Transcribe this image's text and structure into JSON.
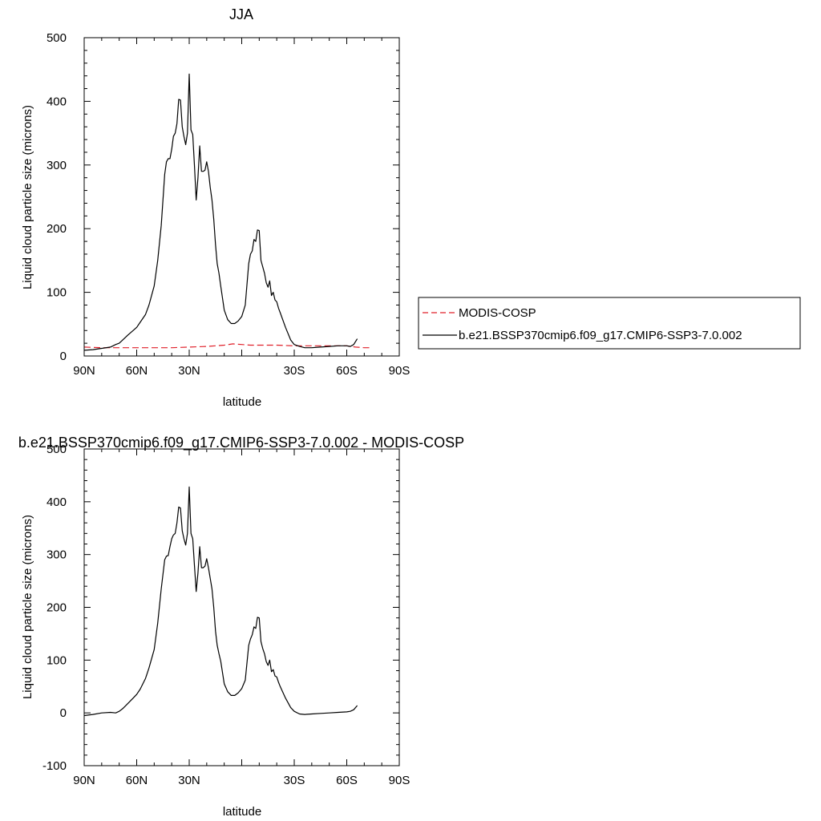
{
  "chart_data": [
    {
      "type": "line",
      "title": "JJA",
      "xlabel": "latitude",
      "ylabel": "Liquid cloud particle size (microns)",
      "xlim": [
        90,
        -90
      ],
      "ylim": [
        0,
        500
      ],
      "xticks": [
        90,
        60,
        30,
        0,
        -30,
        -60,
        -90
      ],
      "xtick_labels": [
        "90N",
        "60N",
        "30N",
        "",
        "30S",
        "60S",
        "90S"
      ],
      "yticks": [
        0,
        100,
        200,
        300,
        400,
        500
      ],
      "ytick_labels": [
        "0",
        "100",
        "200",
        "300",
        "400",
        "500"
      ],
      "legend_position": "right",
      "series": [
        {
          "name": "MODIS-COSP",
          "color": "#e0202a",
          "style": "dashed",
          "x": [
            90,
            80,
            70,
            60,
            50,
            40,
            30,
            20,
            15,
            10,
            5,
            0,
            -5,
            -10,
            -20,
            -30,
            -40,
            -50,
            -60,
            -65,
            -70,
            -73
          ],
          "y": [
            14,
            13,
            13,
            13,
            13,
            13,
            14,
            15,
            16,
            17,
            19,
            18,
            17,
            17,
            17,
            16,
            16,
            16,
            16,
            14,
            13,
            13
          ]
        },
        {
          "name": "b.e21.BSSP370cmip6.f09_g17.CMIP6-SSP3-7.0.002",
          "color": "#000000",
          "style": "solid",
          "x": [
            90,
            85,
            80,
            75,
            72,
            70,
            68,
            65,
            62,
            60,
            58,
            55,
            53,
            50,
            48,
            46,
            44,
            43,
            42,
            41,
            40,
            39,
            38,
            37,
            36,
            35,
            34,
            33,
            32,
            31,
            30,
            29,
            28,
            27,
            26,
            25,
            24,
            23,
            22,
            21,
            20,
            19,
            18,
            17,
            16,
            15,
            14,
            13,
            12,
            10,
            8,
            6,
            4,
            2,
            0,
            -2,
            -4,
            -5,
            -6,
            -7,
            -8,
            -9,
            -10,
            -11,
            -12,
            -13,
            -14,
            -15,
            -16,
            -17,
            -18,
            -19,
            -20,
            -21,
            -22,
            -25,
            -28,
            -30,
            -33,
            -36,
            -40,
            -45,
            -50,
            -55,
            -60,
            -62,
            -64,
            -66
          ],
          "y": [
            9,
            10,
            12,
            14,
            18,
            20,
            25,
            33,
            40,
            45,
            53,
            65,
            80,
            110,
            150,
            205,
            285,
            305,
            310,
            310,
            325,
            345,
            350,
            365,
            403,
            402,
            360,
            345,
            332,
            350,
            443,
            355,
            348,
            300,
            245,
            280,
            330,
            290,
            290,
            292,
            305,
            290,
            265,
            245,
            215,
            175,
            145,
            130,
            110,
            72,
            57,
            51,
            51,
            55,
            62,
            80,
            145,
            160,
            165,
            183,
            180,
            198,
            197,
            150,
            140,
            130,
            115,
            108,
            118,
            95,
            100,
            88,
            85,
            75,
            68,
            45,
            25,
            18,
            15,
            13,
            13,
            14,
            15,
            16,
            16,
            15,
            18,
            27
          ]
        }
      ]
    },
    {
      "type": "line",
      "title": "b.e21.BSSP370cmip6.f09_g17.CMIP6-SSP3-7.0.002 - MODIS-COSP",
      "xlabel": "latitude",
      "ylabel": "Liquid cloud particle size (microns)",
      "xlim": [
        90,
        -90
      ],
      "ylim": [
        -100,
        500
      ],
      "xticks": [
        90,
        60,
        30,
        0,
        -30,
        -60,
        -90
      ],
      "xtick_labels": [
        "90N",
        "60N",
        "30N",
        "",
        "30S",
        "60S",
        "90S"
      ],
      "yticks": [
        -100,
        0,
        100,
        200,
        300,
        400,
        500
      ],
      "ytick_labels": [
        "-100",
        "0",
        "100",
        "200",
        "300",
        "400",
        "500"
      ],
      "series": [
        {
          "color": "#000000",
          "style": "solid",
          "x": [
            90,
            85,
            80,
            75,
            72,
            70,
            68,
            65,
            62,
            60,
            58,
            55,
            53,
            50,
            48,
            46,
            44,
            43,
            42,
            41,
            40,
            39,
            38,
            37,
            36,
            35,
            34,
            33,
            32,
            31,
            30,
            29,
            28,
            27,
            26,
            25,
            24,
            23,
            22,
            21,
            20,
            19,
            18,
            17,
            16,
            15,
            14,
            13,
            12,
            10,
            8,
            6,
            4,
            2,
            0,
            -2,
            -4,
            -5,
            -6,
            -7,
            -8,
            -9,
            -10,
            -11,
            -12,
            -13,
            -14,
            -15,
            -16,
            -17,
            -18,
            -19,
            -20,
            -21,
            -22,
            -25,
            -28,
            -30,
            -33,
            -36,
            -40,
            -45,
            -50,
            -55,
            -60,
            -62,
            -64,
            -66
          ],
          "y": [
            -5,
            -3,
            0,
            1,
            0,
            3,
            8,
            18,
            28,
            35,
            45,
            65,
            85,
            120,
            170,
            235,
            290,
            297,
            298,
            315,
            330,
            337,
            340,
            360,
            390,
            388,
            345,
            330,
            318,
            340,
            428,
            340,
            330,
            280,
            230,
            265,
            315,
            275,
            275,
            278,
            292,
            275,
            255,
            235,
            200,
            155,
            128,
            112,
            98,
            55,
            40,
            33,
            33,
            38,
            46,
            62,
            128,
            140,
            148,
            163,
            160,
            181,
            180,
            135,
            122,
            112,
            97,
            90,
            100,
            78,
            82,
            70,
            68,
            58,
            50,
            28,
            10,
            3,
            -2,
            -3,
            -2,
            -1,
            0,
            1,
            2,
            3,
            6,
            14
          ]
        }
      ]
    }
  ]
}
